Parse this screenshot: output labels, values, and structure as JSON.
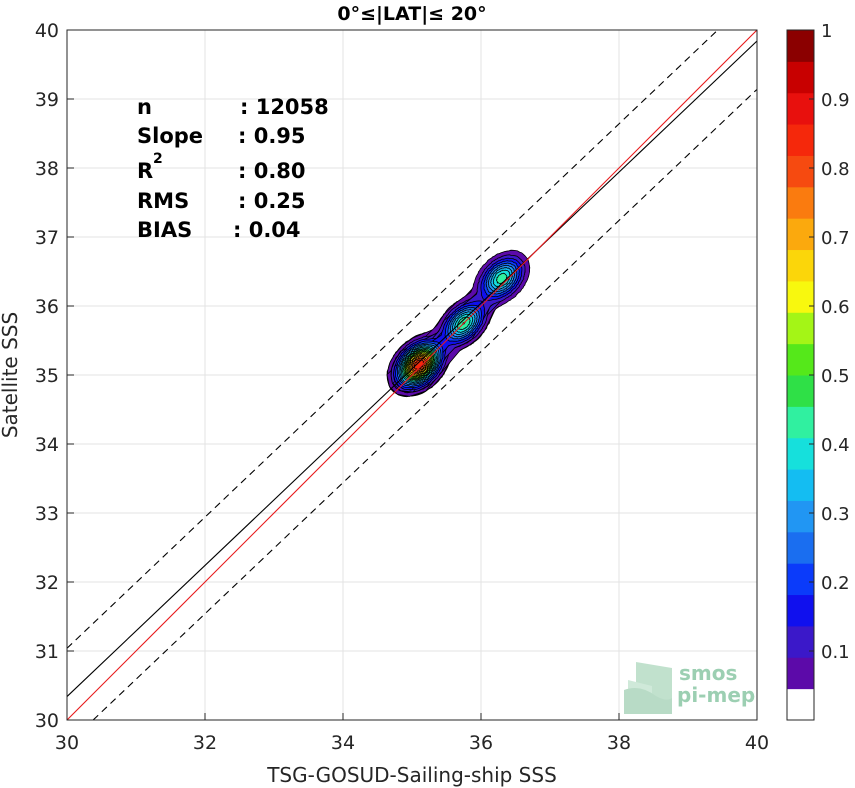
{
  "chart_data": {
    "type": "contour-scatter",
    "title": "0°≤|LAT|≤ 20°",
    "xlabel": "TSG-GOSUD-Sailing-ship SSS",
    "ylabel": "Satellite SSS",
    "xlim": [
      30,
      40
    ],
    "ylim": [
      30,
      40
    ],
    "xticks": [
      "30",
      "32",
      "34",
      "36",
      "38",
      "40"
    ],
    "yticks": [
      "30",
      "31",
      "32",
      "33",
      "34",
      "35",
      "36",
      "37",
      "38",
      "39",
      "40"
    ],
    "grid": true,
    "stats": [
      {
        "label": "n",
        "value": ": 12058"
      },
      {
        "label": "Slope",
        "value": ": 0.95"
      },
      {
        "label": "R",
        "sup": "2",
        "value": ": 0.80"
      },
      {
        "label": "RMS",
        "value": ": 0.25"
      },
      {
        "label": "BIAS",
        "value": ": 0.04"
      }
    ],
    "lines": {
      "identity": {
        "slope": 1,
        "intercept": 0,
        "color": "#e8191b"
      },
      "fit": {
        "slope": 0.95,
        "intercept": 1.84,
        "color": "#000000"
      },
      "bounds_offset": 0.7
    },
    "density_peaks": [
      {
        "x": 35.1,
        "y": 35.15,
        "value": 0.95
      },
      {
        "x": 35.75,
        "y": 35.75,
        "value": 0.5
      },
      {
        "x": 36.3,
        "y": 36.4,
        "value": 0.48
      }
    ],
    "colorbar": {
      "range": [
        0,
        1
      ],
      "ticks": [
        "0.1",
        "0.2",
        "0.3",
        "0.4",
        "0.5",
        "0.6",
        "0.7",
        "0.8",
        "0.9",
        "1"
      ],
      "colors": [
        "#ffffff",
        "#5c0aa9",
        "#3b18c9",
        "#1010ee",
        "#0b3bfa",
        "#1a6ef0",
        "#2196f3",
        "#14bdf2",
        "#16e0dc",
        "#30f0a0",
        "#2fe047",
        "#55e81a",
        "#a4f516",
        "#f8f80e",
        "#fbd60a",
        "#fba90d",
        "#fa7b0f",
        "#f64a10",
        "#f5280b",
        "#e8100d",
        "#c80000",
        "#8b0000"
      ]
    }
  },
  "logo": {
    "line1": "smos",
    "line2": "pi-mep"
  }
}
